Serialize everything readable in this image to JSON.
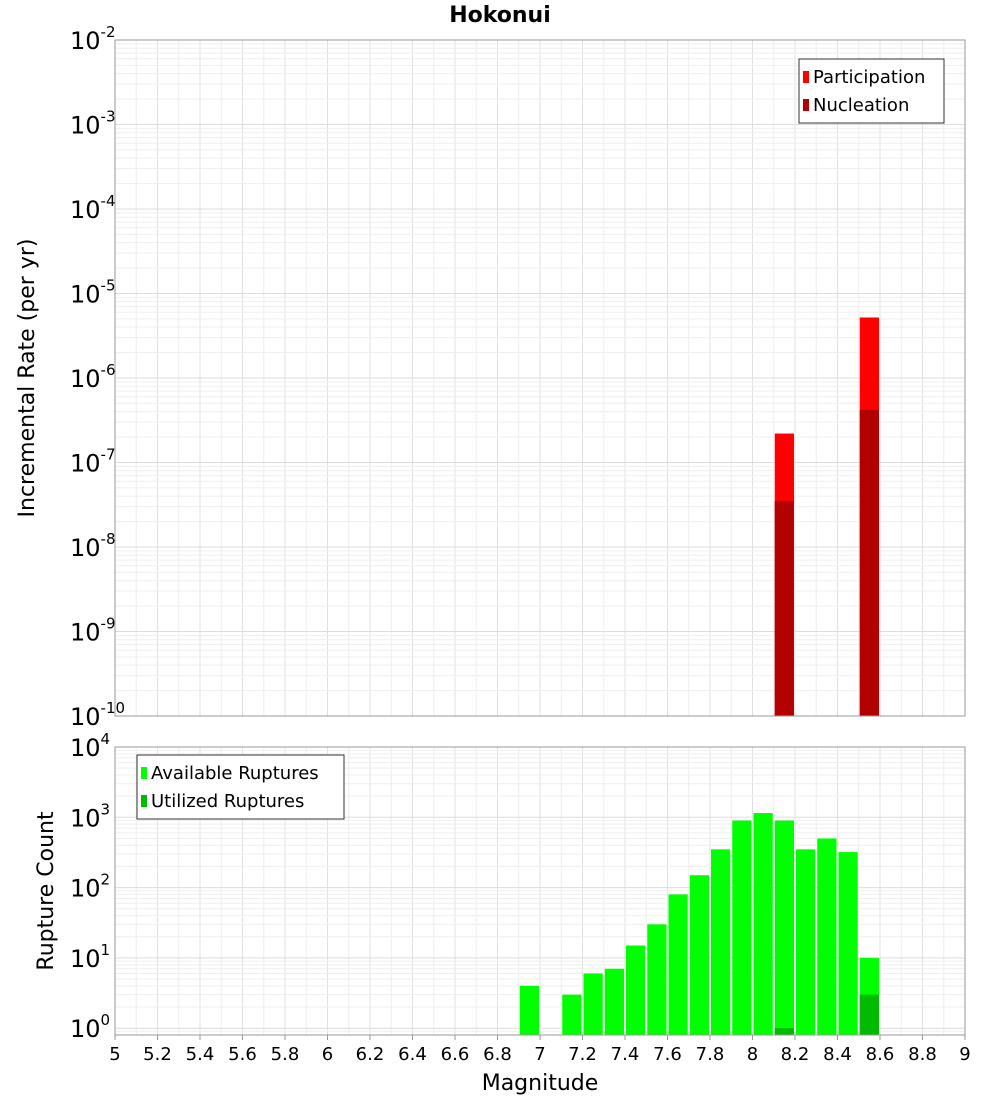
{
  "title": "Hokonui",
  "chart_data": [
    {
      "type": "bar",
      "ylabel": "Incremental Rate (per yr)",
      "yscale": "log",
      "ylim": [
        1e-10,
        0.01
      ],
      "xlim": [
        5,
        9
      ],
      "grid": true,
      "legend_position": "top-right",
      "bin_width": 0.1,
      "ytick_exponents": [
        "-2",
        "-3",
        "-4",
        "-5",
        "-6",
        "-7",
        "-8",
        "-9",
        "-10"
      ],
      "series": [
        {
          "name": "Participation",
          "color": "#ff0000",
          "x": [
            8.15,
            8.55
          ],
          "values": [
            2.2e-07,
            5.2e-06
          ]
        },
        {
          "name": "Nucleation",
          "color": "#b30000",
          "x": [
            8.15,
            8.55
          ],
          "values": [
            3.5e-08,
            4.2e-07
          ]
        }
      ]
    },
    {
      "type": "bar",
      "xlabel": "Magnitude",
      "ylabel": "Rupture Count",
      "yscale": "log",
      "ylim": [
        0.8,
        10000.0
      ],
      "xlim": [
        5,
        9
      ],
      "grid": true,
      "legend_position": "top-left",
      "bin_width": 0.1,
      "ytick_exponents": [
        "0",
        "1",
        "2",
        "3",
        "4"
      ],
      "xticks": [
        "5",
        "5.2",
        "5.4",
        "5.6",
        "5.8",
        "6",
        "6.2",
        "6.4",
        "6.6",
        "6.8",
        "7",
        "7.2",
        "7.4",
        "7.6",
        "7.8",
        "8",
        "8.2",
        "8.4",
        "8.6",
        "8.8",
        "9"
      ],
      "series": [
        {
          "name": "Available Ruptures",
          "color": "#00ff00",
          "x": [
            6.95,
            7.15,
            7.25,
            7.35,
            7.45,
            7.55,
            7.65,
            7.75,
            7.85,
            7.95,
            8.05,
            8.15,
            8.25,
            8.35,
            8.45,
            8.55
          ],
          "values": [
            4,
            3,
            6,
            7,
            15,
            30,
            80,
            150,
            350,
            900,
            1150,
            900,
            350,
            500,
            320,
            10
          ]
        },
        {
          "name": "Utilized Ruptures",
          "color": "#00bb00",
          "x": [
            8.15,
            8.55
          ],
          "values": [
            1,
            3
          ]
        }
      ]
    }
  ]
}
